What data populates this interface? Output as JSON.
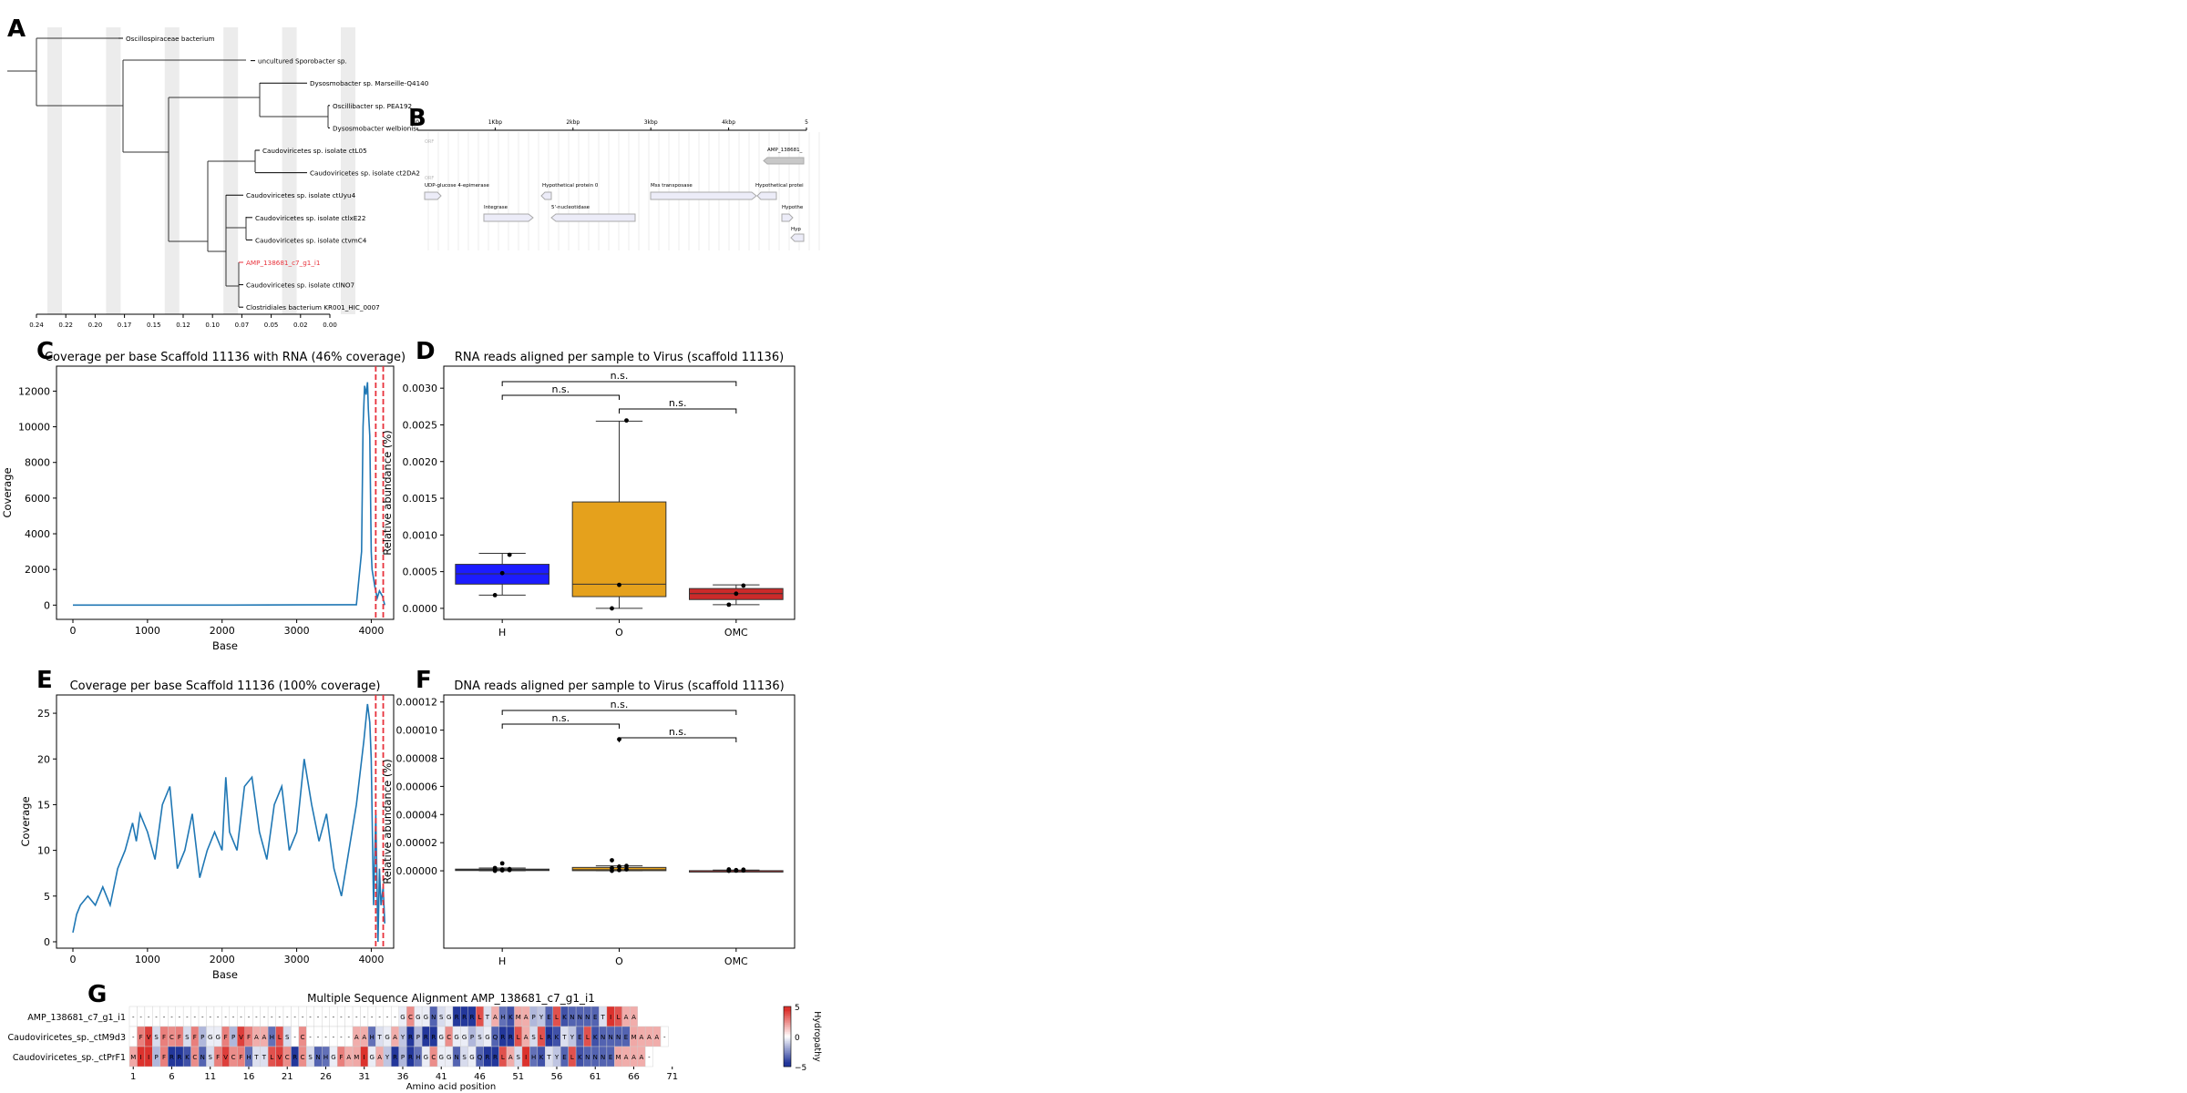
{
  "panels": {
    "A": "A",
    "B": "B",
    "C": "C",
    "D": "D",
    "E": "E",
    "F": "F",
    "G": "G"
  },
  "tree": {
    "ticks": [
      "0.24",
      "0.22",
      "0.20",
      "0.17",
      "0.15",
      "0.12",
      "0.10",
      "0.07",
      "0.05",
      "0.02",
      "0.00"
    ],
    "leaves": [
      "Oscillospiraceae bacterium",
      "uncultured Sporobacter sp.",
      "Dysosmobacter sp. Marseille-Q4140",
      "Oscillibacter sp. PEA192",
      "Dysosmobacter welbionis",
      "Caudoviricetes  sp. isolate ctL05",
      "Caudoviricetes sp. isolate ct2DA2",
      "Caudoviricetes sp. isolate ctUyu4",
      "Caudoviricetes sp. isolate ctlxE22",
      "Caudoviricetes sp. isolate ctvmC4",
      "AMP_138681_c7_g1_i1",
      "Caudoviricetes sp. isolate ctlNO7",
      "Clostridiales bacterium KR001_HIC_0007"
    ],
    "highlight_color": "#e8323c"
  },
  "genome_map": {
    "axis": [
      "0",
      "1Kbp",
      "2kbp",
      "3kbp",
      "4kbp",
      "5"
    ],
    "labels": [
      "ORF",
      "AMP_138681_",
      "UDP-glucose 4-epimerase",
      "Hypothetical protein 0",
      "Mss transposase",
      "Hypothetical protei",
      "Integrase",
      "5'-nucleotidase",
      "Hypothe",
      "Hyp"
    ]
  },
  "chart_data": [
    {
      "panel": "C",
      "type": "line",
      "title": "Coverage per base Scaffold 11136 with RNA (46% coverage)",
      "xlabel": "Base",
      "ylabel": "Coverage",
      "xlim": [
        -220,
        4300
      ],
      "ylim": [
        -800,
        13400
      ],
      "xticks": [
        0,
        1000,
        2000,
        3000,
        4000
      ],
      "yticks": [
        0,
        2000,
        4000,
        6000,
        8000,
        10000,
        12000
      ],
      "x": [
        0,
        1000,
        2000,
        3000,
        3800,
        3870,
        3890,
        3910,
        3930,
        3950,
        3960,
        3980,
        4000,
        4010,
        4030,
        4050,
        4080,
        4110,
        4150,
        4180
      ],
      "y": [
        0,
        0,
        0,
        10,
        20,
        3000,
        10000,
        12300,
        11800,
        12500,
        11000,
        9500,
        3000,
        2000,
        1500,
        1000,
        400,
        800,
        500,
        0
      ],
      "vlines": [
        4060,
        4160
      ],
      "vline_color": "#e8323c",
      "line_color": "#1f77b4"
    },
    {
      "panel": "D",
      "type": "box",
      "title": "RNA reads aligned per sample to Virus (scaffold 11136)",
      "ylabel": "Relative abundance (%)",
      "categories": [
        "H",
        "O",
        "OMC"
      ],
      "ylim": [
        -0.00015,
        0.0033
      ],
      "yticks": [
        0.0,
        0.0005,
        0.001,
        0.0015,
        0.002,
        0.0025,
        0.003
      ],
      "ytick_labels": [
        "0.0000",
        "0.0005",
        "0.0010",
        "0.0015",
        "0.0020",
        "0.0025",
        "0.0030"
      ],
      "boxes": [
        {
          "name": "H",
          "color": "#1c1cff",
          "min": 0.00018,
          "q1": 0.00033,
          "median": 0.00047,
          "q3": 0.0006,
          "max": 0.00075,
          "points": [
            0.00018,
            0.00048,
            0.00073
          ]
        },
        {
          "name": "O",
          "color": "#e5a11c",
          "min": 0.0,
          "q1": 0.00016,
          "median": 0.00033,
          "q3": 0.00145,
          "max": 0.00255,
          "points": [
            0.0,
            0.00032,
            0.00256
          ]
        },
        {
          "name": "OMC",
          "color": "#cc2a2a",
          "min": 5e-05,
          "q1": 0.00012,
          "median": 0.0002,
          "q3": 0.00027,
          "max": 0.00032,
          "points": [
            5e-05,
            0.0002,
            0.00031
          ]
        }
      ],
      "brackets": [
        {
          "from": "H",
          "to": "O",
          "label": "n.s.",
          "level": 2
        },
        {
          "from": "H",
          "to": "OMC",
          "label": "n.s.",
          "level": 3
        },
        {
          "from": "O",
          "to": "OMC",
          "label": "n.s.",
          "level": 1
        }
      ]
    },
    {
      "panel": "E",
      "type": "line",
      "title": "Coverage per base Scaffold 11136 (100% coverage)",
      "xlabel": "Base",
      "ylabel": "Coverage",
      "xlim": [
        -220,
        4300
      ],
      "ylim": [
        -0.7,
        27
      ],
      "xticks": [
        0,
        1000,
        2000,
        3000,
        4000
      ],
      "yticks": [
        0,
        5,
        10,
        15,
        20,
        25
      ],
      "x": [
        0,
        50,
        100,
        200,
        300,
        400,
        500,
        600,
        700,
        800,
        850,
        900,
        1000,
        1100,
        1200,
        1300,
        1400,
        1500,
        1600,
        1700,
        1800,
        1900,
        2000,
        2050,
        2100,
        2200,
        2300,
        2400,
        2500,
        2600,
        2700,
        2800,
        2900,
        3000,
        3100,
        3200,
        3300,
        3400,
        3500,
        3600,
        3700,
        3800,
        3900,
        3950,
        3980,
        4000,
        4030,
        4060,
        4090,
        4110,
        4130,
        4160,
        4180
      ],
      "y": [
        1,
        3,
        4,
        5,
        4,
        6,
        4,
        8,
        10,
        13,
        11,
        14,
        12,
        9,
        15,
        17,
        8,
        10,
        14,
        7,
        10,
        12,
        10,
        18,
        12,
        10,
        17,
        18,
        12,
        9,
        15,
        17,
        10,
        12,
        20,
        15,
        11,
        14,
        8,
        5,
        10,
        15,
        22,
        26,
        24,
        20,
        4,
        14,
        0,
        8,
        4,
        6,
        2
      ],
      "vlines": [
        4060,
        4160
      ],
      "vline_color": "#e8323c",
      "line_color": "#1f77b4"
    },
    {
      "panel": "F",
      "type": "box",
      "title": "DNA reads aligned per sample to Virus (scaffold 11136)",
      "ylabel": "Relative abundance (%)",
      "categories": [
        "H",
        "O",
        "OMC"
      ],
      "ylim": [
        -5.5e-05,
        0.000125
      ],
      "yticks": [
        0.0,
        2e-05,
        4e-05,
        6e-05,
        8e-05,
        0.0001,
        0.00012
      ],
      "ytick_labels": [
        "0.00000",
        "0.00002",
        "0.00004",
        "0.00006",
        "0.00008",
        "0.00010",
        "0.00012"
      ],
      "boxes": [
        {
          "name": "H",
          "color": "#3a3a3a",
          "min": 0.0,
          "q1": 2e-07,
          "median": 6e-07,
          "q3": 1.2e-06,
          "max": 2e-06,
          "points": [
            0.0,
            3e-07,
            5e-07,
            8e-07,
            1e-06,
            1.2e-06,
            2e-06,
            5.3e-06
          ]
        },
        {
          "name": "O",
          "color": "#e5a11c",
          "min": 0.0,
          "q1": 1e-07,
          "median": 8e-07,
          "q3": 2.4e-06,
          "max": 3.5e-06,
          "points": [
            0.0,
            5e-07,
            1e-06,
            2e-06,
            3e-06,
            3.5e-06,
            7.5e-06,
            9.35e-05
          ]
        },
        {
          "name": "OMC",
          "color": "#cc2a2a",
          "min": 0.0,
          "q1": 0.0,
          "median": 0.0,
          "q3": 1e-07,
          "max": 5e-07,
          "points": [
            0.0,
            1e-07,
            2e-07,
            3e-07,
            5e-07,
            8e-07,
            1e-06
          ]
        }
      ],
      "brackets": [
        {
          "from": "H",
          "to": "O",
          "label": "n.s.",
          "level": 2
        },
        {
          "from": "H",
          "to": "OMC",
          "label": "n.s.",
          "level": 3
        },
        {
          "from": "O",
          "to": "OMC",
          "label": "n.s.",
          "level": 1
        }
      ]
    },
    {
      "panel": "G",
      "type": "heatmap",
      "title": "Multiple Sequence Alignment AMP_138681_c7_g1_i1",
      "xlabel": "Amino acid position",
      "rows": [
        "AMP_138681_c7_g1_i1",
        "Caudoviricetes_sp._ctM9d3",
        "Caudoviricetes_sp._ctPrF1"
      ],
      "xticks": [
        "1",
        "6",
        "11",
        "16",
        "21",
        "26",
        "31",
        "36",
        "41",
        "46",
        "51",
        "56",
        "61",
        "66",
        "71"
      ],
      "colorbar": {
        "label": "Hydropathy",
        "ticks": [
          "5",
          "0",
          "−5"
        ]
      },
      "sequences": [
        "-----------------------------------GCGGNSGRRRLTAHKMAPYELKNNNETILAA",
        "-FVSFCFSFPGGFPVFAAHLS-C------AAHTGAYRPRRGCGGPSGQRRLASLRKTYELKNNNEMAAA-",
        "MIIPFRRKCNSFVCFHTTLVCRCSNHGFAMIGAYRPRHGCGGNSGQRRLASIHKTYELKNNNEMAAA-"
      ],
      "hydropathy": {
        "A": 1.8,
        "R": -4.5,
        "N": -3.5,
        "D": -3.5,
        "C": 2.5,
        "Q": -3.5,
        "E": -3.5,
        "G": -0.4,
        "H": -3.2,
        "I": 4.5,
        "L": 3.8,
        "K": -3.9,
        "M": 1.9,
        "F": 2.8,
        "P": -1.6,
        "S": -0.8,
        "T": -0.7,
        "W": -0.9,
        "Y": -1.3,
        "V": 4.2
      }
    }
  ]
}
